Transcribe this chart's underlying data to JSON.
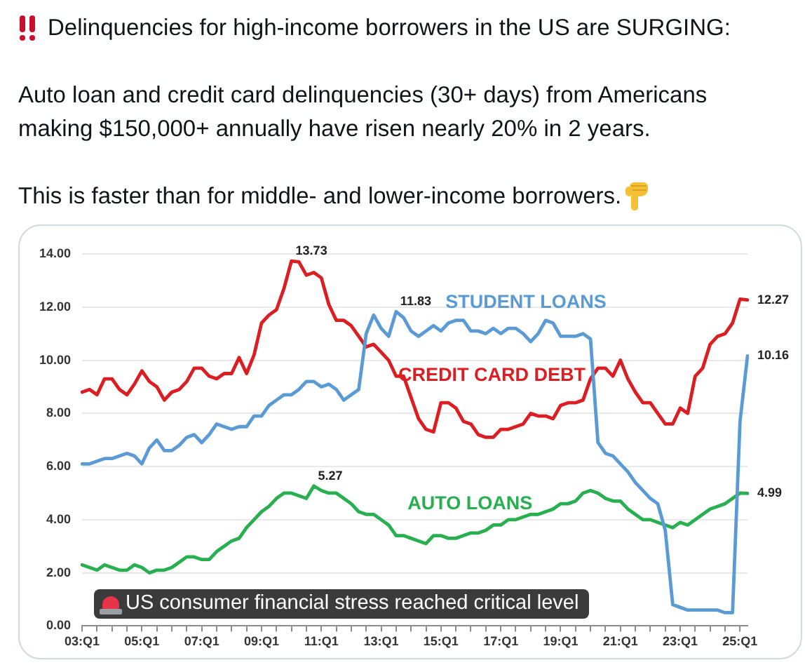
{
  "chart_data": {
    "type": "line",
    "title": "Delinquencies for high-income borrowers in the US are SURGING:",
    "subtitle": "Auto loan and credit card delinquencies (30+ days) from Americans making $150,000+ annually have risen nearly 20% in 2 years.",
    "annotations": [
      "This is faster than for middle- and lower-income borrowers.",
      "US consumer financial stress reached critical level"
    ],
    "categories": [
      "03:Q1",
      null,
      null,
      null,
      null,
      null,
      null,
      null,
      "05:Q1",
      null,
      null,
      null,
      null,
      null,
      null,
      null,
      "07:Q1",
      null,
      null,
      null,
      null,
      null,
      null,
      null,
      "09:Q1",
      null,
      null,
      null,
      null,
      null,
      null,
      null,
      "11:Q1",
      null,
      null,
      null,
      null,
      null,
      null,
      null,
      "13:Q1",
      null,
      null,
      null,
      null,
      null,
      null,
      null,
      "15:Q1",
      null,
      null,
      null,
      null,
      null,
      null,
      null,
      "17:Q1",
      null,
      null,
      null,
      null,
      null,
      null,
      null,
      "19:Q1",
      null,
      null,
      null,
      null,
      null,
      null,
      null,
      "21:Q1",
      null,
      null,
      null,
      null,
      null,
      null,
      null,
      "23:Q1",
      null,
      null,
      null,
      null,
      null,
      null,
      null,
      "25:Q1",
      null
    ],
    "series": [
      {
        "name": "STUDENT LOANS",
        "color": "#5b9bd5",
        "values": [
          6.1,
          6.1,
          6.2,
          6.3,
          6.3,
          6.4,
          6.5,
          6.4,
          6.1,
          6.7,
          7.0,
          6.6,
          6.6,
          6.8,
          7.1,
          7.2,
          6.9,
          7.2,
          7.6,
          7.5,
          7.4,
          7.5,
          7.5,
          7.9,
          7.9,
          8.3,
          8.5,
          8.7,
          8.7,
          8.9,
          9.2,
          9.2,
          9.0,
          9.1,
          8.9,
          8.5,
          8.7,
          8.9,
          11.0,
          11.7,
          11.2,
          10.9,
          11.83,
          11.6,
          11.1,
          10.9,
          11.1,
          11.3,
          11.1,
          11.4,
          11.5,
          11.5,
          11.1,
          11.1,
          11.0,
          11.2,
          11.0,
          11.2,
          11.2,
          11.0,
          10.7,
          11.0,
          11.5,
          11.4,
          10.9,
          10.9,
          10.9,
          11.0,
          10.8,
          6.9,
          6.5,
          6.4,
          6.1,
          5.8,
          5.4,
          5.1,
          4.8,
          4.6,
          3.6,
          0.8,
          0.7,
          0.6,
          0.6,
          0.6,
          0.6,
          0.6,
          0.5,
          0.5,
          7.7,
          10.16
        ],
        "value_labels": [
          null,
          null,
          null,
          null,
          null,
          null,
          null,
          null,
          null,
          null,
          null,
          null,
          null,
          null,
          null,
          null,
          null,
          null,
          null,
          null,
          null,
          null,
          null,
          null,
          null,
          null,
          null,
          null,
          null,
          null,
          null,
          null,
          null,
          null,
          null,
          null,
          null,
          null,
          null,
          null,
          null,
          null,
          "11.83",
          null,
          null,
          null,
          null,
          null,
          null,
          null,
          null,
          null,
          null,
          null,
          null,
          null,
          null,
          null,
          null,
          null,
          null,
          null,
          null,
          null,
          null,
          null,
          null,
          null,
          null,
          null,
          null,
          null,
          null,
          null,
          null,
          null,
          null,
          null,
          null,
          null,
          null,
          null,
          null,
          null,
          null,
          null,
          null,
          null,
          null,
          "10.16"
        ]
      },
      {
        "name": "CREDIT CARD DEBT",
        "color": "#dc1e23",
        "values": [
          8.8,
          8.9,
          8.7,
          9.3,
          9.3,
          8.9,
          8.7,
          9.1,
          9.6,
          9.2,
          9.0,
          8.5,
          8.8,
          8.9,
          9.2,
          9.7,
          9.7,
          9.4,
          9.3,
          9.5,
          9.5,
          10.1,
          9.5,
          10.2,
          11.4,
          11.7,
          11.9,
          12.7,
          13.73,
          13.7,
          13.2,
          13.3,
          13.1,
          12.1,
          11.5,
          11.5,
          11.3,
          10.9,
          10.5,
          10.6,
          10.3,
          10.0,
          9.4,
          9.4,
          8.6,
          7.8,
          7.4,
          7.3,
          8.4,
          8.4,
          8.2,
          7.7,
          7.6,
          7.2,
          7.1,
          7.1,
          7.4,
          7.4,
          7.5,
          7.6,
          8.0,
          7.9,
          7.9,
          7.8,
          8.3,
          8.4,
          8.4,
          8.5,
          9.3,
          9.7,
          9.7,
          9.4,
          10.0,
          9.3,
          8.8,
          8.4,
          8.4,
          8.0,
          7.6,
          7.6,
          8.2,
          8.0,
          9.4,
          9.7,
          10.6,
          10.9,
          11.0,
          11.4,
          12.3,
          12.27
        ],
        "value_labels": [
          null,
          null,
          null,
          null,
          null,
          null,
          null,
          null,
          null,
          null,
          null,
          null,
          null,
          null,
          null,
          null,
          null,
          null,
          null,
          null,
          null,
          null,
          null,
          null,
          null,
          null,
          null,
          null,
          "13.73",
          null,
          null,
          null,
          null,
          null,
          null,
          null,
          null,
          null,
          null,
          null,
          null,
          null,
          null,
          null,
          null,
          null,
          null,
          null,
          null,
          null,
          null,
          null,
          null,
          null,
          null,
          null,
          null,
          null,
          null,
          null,
          null,
          null,
          null,
          null,
          null,
          null,
          null,
          null,
          null,
          null,
          null,
          null,
          null,
          null,
          null,
          null,
          null,
          null,
          null,
          null,
          null,
          null,
          null,
          null,
          null,
          null,
          null,
          null,
          null,
          "12.27"
        ]
      },
      {
        "name": "AUTO LOANS",
        "color": "#28b050",
        "values": [
          2.3,
          2.2,
          2.1,
          2.3,
          2.2,
          2.1,
          2.1,
          2.3,
          2.2,
          2.0,
          2.1,
          2.1,
          2.2,
          2.4,
          2.6,
          2.6,
          2.5,
          2.5,
          2.8,
          3.0,
          3.2,
          3.3,
          3.7,
          4.0,
          4.3,
          4.5,
          4.8,
          5.0,
          5.0,
          4.9,
          4.8,
          5.27,
          5.1,
          5.0,
          5.0,
          4.8,
          4.6,
          4.3,
          4.2,
          4.2,
          4.0,
          3.8,
          3.4,
          3.4,
          3.3,
          3.2,
          3.1,
          3.4,
          3.4,
          3.3,
          3.3,
          3.4,
          3.5,
          3.5,
          3.6,
          3.8,
          3.8,
          4.0,
          4.0,
          4.1,
          4.2,
          4.2,
          4.3,
          4.4,
          4.6,
          4.6,
          4.7,
          5.0,
          5.1,
          5.0,
          4.8,
          4.7,
          4.7,
          4.4,
          4.2,
          4.0,
          4.0,
          3.9,
          3.8,
          3.7,
          3.9,
          3.8,
          4.0,
          4.2,
          4.4,
          4.5,
          4.6,
          4.8,
          5.0,
          4.99
        ],
        "value_labels": [
          null,
          null,
          null,
          null,
          null,
          null,
          null,
          null,
          null,
          null,
          null,
          null,
          null,
          null,
          null,
          null,
          null,
          null,
          null,
          null,
          null,
          null,
          null,
          null,
          null,
          null,
          null,
          null,
          null,
          null,
          null,
          "5.27",
          null,
          null,
          null,
          null,
          null,
          null,
          null,
          null,
          null,
          null,
          null,
          null,
          null,
          null,
          null,
          null,
          null,
          null,
          null,
          null,
          null,
          null,
          null,
          null,
          null,
          null,
          null,
          null,
          null,
          null,
          null,
          null,
          null,
          null,
          null,
          null,
          null,
          null,
          null,
          null,
          null,
          null,
          null,
          null,
          null,
          null,
          null,
          null,
          null,
          null,
          null,
          null,
          null,
          null,
          null,
          null,
          null,
          "4.99"
        ]
      }
    ],
    "ylim": [
      0,
      14
    ],
    "yticks": [
      {
        "value": 0,
        "label": "0.00"
      },
      {
        "value": 2,
        "label": "2.00"
      },
      {
        "value": 4,
        "label": "4.00"
      },
      {
        "value": 6,
        "label": "6.00"
      },
      {
        "value": 8,
        "label": "8.00"
      },
      {
        "value": 10,
        "label": "10.00"
      },
      {
        "value": 12,
        "label": "12.00"
      },
      {
        "value": 14,
        "label": "14.00"
      }
    ],
    "grid": "y"
  }
}
